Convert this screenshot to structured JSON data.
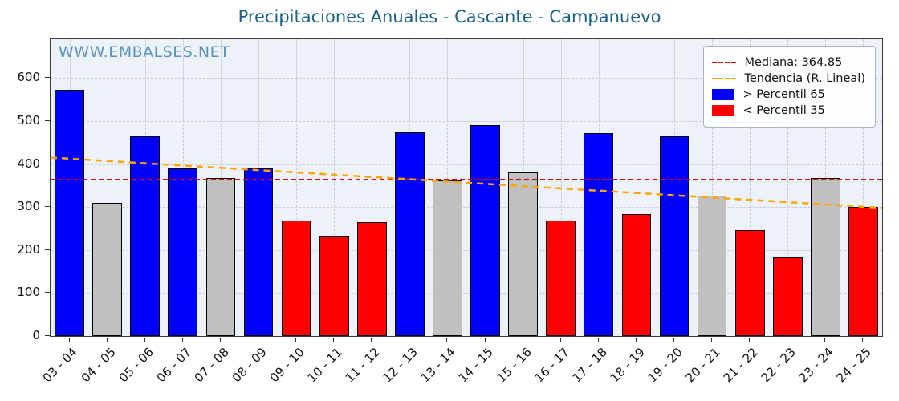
{
  "chart_data": {
    "type": "bar",
    "title": "Precipitaciones Anuales - Cascante - Campanuevo",
    "watermark": "WWW.EMBALSES.NET",
    "categories": [
      "03 - 04",
      "04 - 05",
      "05 - 06",
      "06 - 07",
      "07 - 08",
      "08 - 09",
      "09 - 10",
      "10 - 11",
      "11 - 12",
      "12 - 13",
      "13 - 14",
      "14 - 15",
      "15 - 16",
      "16 - 17",
      "17 - 18",
      "18 - 19",
      "19 - 20",
      "20 - 21",
      "21 - 22",
      "22 - 23",
      "23 - 24",
      "24 - 25"
    ],
    "values": [
      572,
      310,
      465,
      390,
      368,
      390,
      268,
      233,
      264,
      474,
      362,
      490,
      380,
      268,
      471,
      283,
      464,
      326,
      246,
      183,
      368,
      300
    ],
    "classes": [
      "gt65",
      "mid",
      "gt65",
      "gt65",
      "mid",
      "gt65",
      "lt35",
      "lt35",
      "lt35",
      "gt65",
      "mid",
      "gt65",
      "mid",
      "lt35",
      "gt65",
      "lt35",
      "gt65",
      "mid",
      "lt35",
      "lt35",
      "mid",
      "lt35"
    ],
    "median": 364.85,
    "trend_line": {
      "start": 415,
      "end": 298
    },
    "ylim": [
      0,
      690
    ],
    "yticks": [
      0,
      100,
      200,
      300,
      400,
      500,
      600
    ],
    "grid": true,
    "legend_position": "upper right",
    "legend": [
      {
        "label": "Mediana: 364.85",
        "type": "line",
        "color": "#d40000"
      },
      {
        "label": "Tendencia (R. Lineal)",
        "type": "line",
        "color": "#ffa500"
      },
      {
        "label": "> Percentil 65",
        "type": "patch",
        "color": "#0000ff"
      },
      {
        "label": "< Percentil 35",
        "type": "patch",
        "color": "#ff0000"
      }
    ],
    "colors": {
      "gt65": "#0000ff",
      "lt35": "#ff0000",
      "mid": "#c0c0c0",
      "median": "#d40000",
      "trend": "#ffa500",
      "bar_edge": "#000000"
    }
  }
}
